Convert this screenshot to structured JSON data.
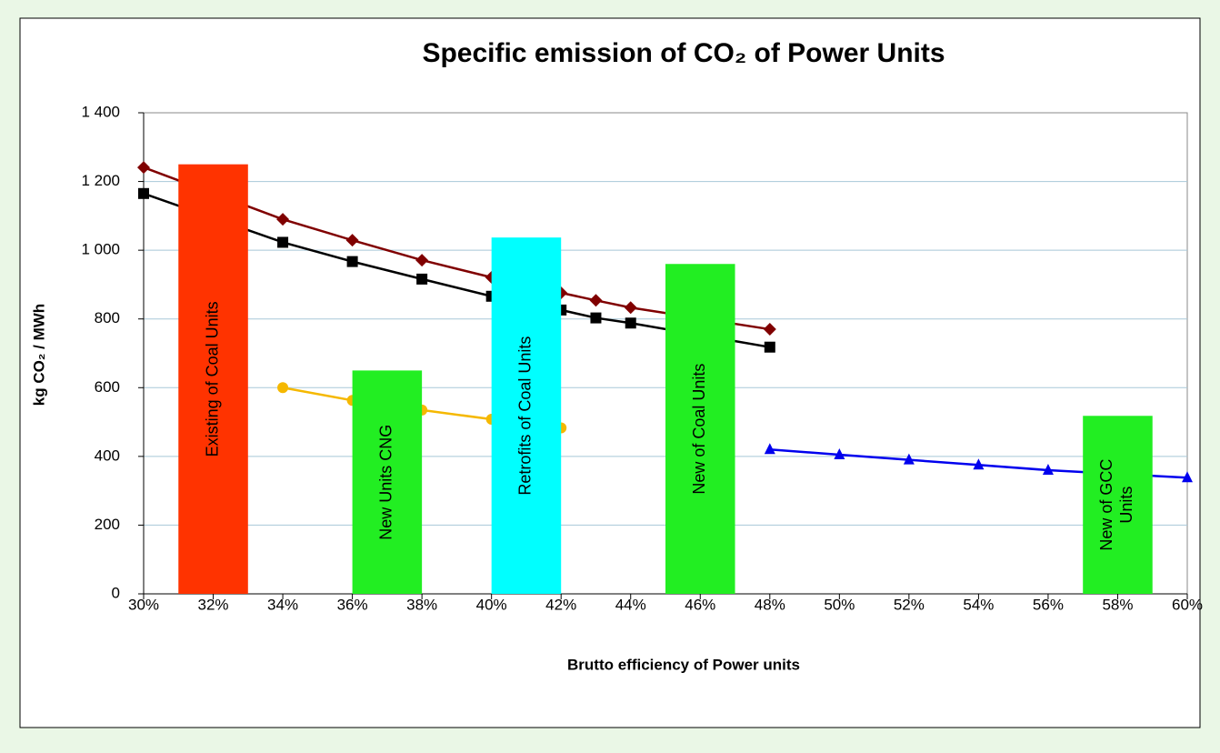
{
  "chart_data": {
    "type": "line",
    "title": "Specific emission of CO₂ of Power Units",
    "x_label": "Brutto efficiency of Power units",
    "y_label": "kg CO₂ / MWh",
    "xlim": [
      30,
      60
    ],
    "xticks": [
      {
        "value": 30,
        "label": "30%"
      },
      {
        "value": 32,
        "label": "32%"
      },
      {
        "value": 34,
        "label": "34%"
      },
      {
        "value": 36,
        "label": "36%"
      },
      {
        "value": 38,
        "label": "38%"
      },
      {
        "value": 40,
        "label": "40%"
      },
      {
        "value": 42,
        "label": "42%"
      },
      {
        "value": 44,
        "label": "44%"
      },
      {
        "value": 46,
        "label": "46%"
      },
      {
        "value": 48,
        "label": "48%"
      },
      {
        "value": 50,
        "label": "50%"
      },
      {
        "value": 52,
        "label": "52%"
      },
      {
        "value": 54,
        "label": "54%"
      },
      {
        "value": 56,
        "label": "56%"
      },
      {
        "value": 58,
        "label": "58%"
      },
      {
        "value": 60,
        "label": "60%"
      }
    ],
    "ylim": [
      0,
      1400
    ],
    "yticks": [
      0,
      200,
      400,
      600,
      800,
      {
        "value": 1000,
        "label": "1 000"
      },
      {
        "value": 1200,
        "label": "1 200"
      },
      {
        "value": 1400,
        "label": "1 400"
      }
    ],
    "grid": true,
    "series": [
      {
        "color": "#800000",
        "marker": "diamond",
        "x": [
          30,
          34,
          36,
          38,
          40,
          42,
          43,
          44,
          48
        ],
        "values": [
          1241,
          1090,
          1029,
          971,
          921,
          876,
          854,
          833,
          770
        ]
      },
      {
        "color": "#000000",
        "marker": "square",
        "x": [
          30,
          34,
          36,
          38,
          40,
          42,
          43,
          44,
          48
        ],
        "values": [
          1165,
          1023,
          967,
          916,
          866,
          826,
          803,
          788,
          718
        ]
      },
      {
        "color": "#f5b800",
        "marker": "circle",
        "x": [
          34,
          36,
          38,
          40,
          42
        ],
        "values": [
          600,
          563,
          535,
          508,
          483
        ]
      },
      {
        "color": "#0000ee",
        "marker": "triangle",
        "x": [
          48,
          50,
          52,
          54,
          56,
          60
        ],
        "values": [
          420,
          405,
          390,
          375,
          360,
          338
        ]
      }
    ],
    "bars": [
      {
        "label": [
          "Existing of Coal Units"
        ],
        "x": [
          31,
          33
        ],
        "value": 1250,
        "color": "#ff3300"
      },
      {
        "label": [
          "New Units CNG"
        ],
        "x": [
          36,
          38
        ],
        "value": 650,
        "color": "#22ee22"
      },
      {
        "label": [
          "Retrofits of Coal Units"
        ],
        "x": [
          40,
          42
        ],
        "value": 1037,
        "color": "#00ffff"
      },
      {
        "label": [
          "New of Coal Units"
        ],
        "x": [
          45,
          47
        ],
        "value": 960,
        "color": "#22ee22"
      },
      {
        "label": [
          "New of GCC",
          "Units"
        ],
        "x": [
          57,
          59
        ],
        "value": 518,
        "color": "#22ee22"
      }
    ]
  }
}
